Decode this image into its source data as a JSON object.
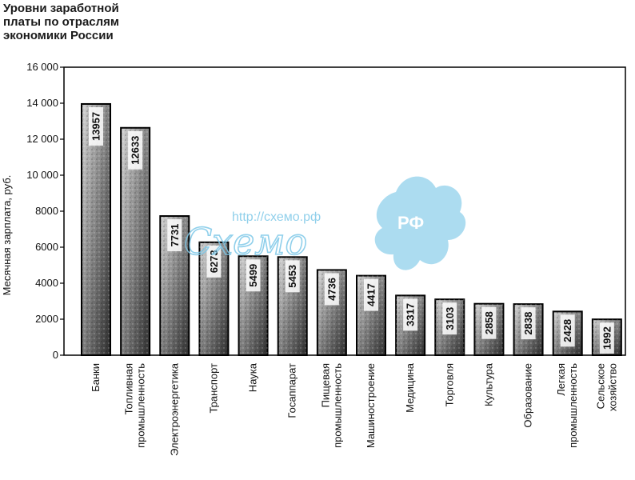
{
  "title_lines": [
    "Уровни заработной",
    "платы по отраслям",
    "экономики России"
  ],
  "watermark": {
    "url": "http://схемо.рф",
    "script": "Cхемо",
    "badge": "РФ",
    "color": "#7ec8e8"
  },
  "chart_data": {
    "type": "bar",
    "title": "Уровни заработной платы по отраслям экономики России",
    "xlabel": "",
    "ylabel": "Месячная зарплата, руб.",
    "ylim": [
      0,
      16000
    ],
    "yticks": [
      0,
      2000,
      4000,
      6000,
      8000,
      10000,
      12000,
      14000,
      16000
    ],
    "ytick_labels": [
      "0",
      "2000",
      "4000",
      "6000",
      "8000",
      "10 000",
      "12 000",
      "14 000",
      "16 000"
    ],
    "grid": false,
    "categories": [
      [
        "Банки"
      ],
      [
        "Топливная",
        "промышленность"
      ],
      [
        "Электроэнергетика"
      ],
      [
        "Транспорт"
      ],
      [
        "Наука"
      ],
      [
        "Госаппарат"
      ],
      [
        "Пищевая",
        "промышленность"
      ],
      [
        "Машиностроение"
      ],
      [
        "Медицина"
      ],
      [
        "Торговля"
      ],
      [
        "Культура"
      ],
      [
        "Образование"
      ],
      [
        "Легкая",
        "промышленность"
      ],
      [
        "Сельское",
        "хозяйство"
      ]
    ],
    "values": [
      13957,
      12633,
      7731,
      6273,
      5499,
      5453,
      4736,
      4417,
      3317,
      3103,
      2858,
      2838,
      2428,
      1992
    ],
    "value_labels": [
      "13957",
      "12633",
      "7731",
      "6273",
      "5499",
      "5453",
      "4736",
      "4417",
      "3317",
      "3103",
      "2858",
      "2838",
      "2428",
      "1992"
    ],
    "colors": {
      "bar_light": "#c8c8c8",
      "bar_dark": "#3a3a3a",
      "label_bg": "#ffffff",
      "axis": "#000000"
    }
  }
}
